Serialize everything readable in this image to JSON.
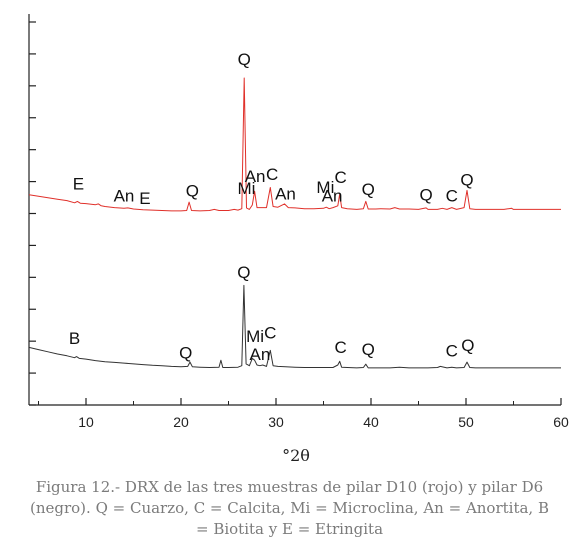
{
  "chart_data": {
    "type": "line",
    "title": "",
    "xlabel": "°2θ",
    "ylabel": "",
    "xlim": [
      4,
      60
    ],
    "x_ticks": [
      10,
      20,
      30,
      40,
      50,
      60
    ],
    "x_tick_labels": [
      "10",
      "20",
      "30",
      "40",
      "50",
      "60"
    ],
    "y_tick_count": 13,
    "grid": false,
    "legend": "none",
    "series": [
      {
        "color": "#e0302a",
        "points": [
          [
            4,
            0.8
          ],
          [
            5,
            0.76
          ],
          [
            6,
            0.72
          ],
          [
            7,
            0.68
          ],
          [
            8,
            0.64
          ],
          [
            8.8,
            0.58
          ],
          [
            9.1,
            0.62
          ],
          [
            9.4,
            0.57
          ],
          [
            10,
            0.56
          ],
          [
            11,
            0.53
          ],
          [
            11.3,
            0.55
          ],
          [
            11.6,
            0.5
          ],
          [
            12,
            0.48
          ],
          [
            13,
            0.45
          ],
          [
            14,
            0.43
          ],
          [
            14.4,
            0.44
          ],
          [
            15,
            0.41
          ],
          [
            16,
            0.39
          ],
          [
            17,
            0.38
          ],
          [
            18,
            0.37
          ],
          [
            19,
            0.36
          ],
          [
            20,
            0.36
          ],
          [
            20.6,
            0.37
          ],
          [
            20.85,
            0.6
          ],
          [
            21.1,
            0.37
          ],
          [
            22,
            0.36
          ],
          [
            23,
            0.37
          ],
          [
            23.5,
            0.4
          ],
          [
            24,
            0.37
          ],
          [
            25,
            0.37
          ],
          [
            25.6,
            0.4
          ],
          [
            26.0,
            0.38
          ],
          [
            26.4,
            0.42
          ],
          [
            26.65,
            4.0
          ],
          [
            26.9,
            0.44
          ],
          [
            27.2,
            0.4
          ],
          [
            27.5,
            0.52
          ],
          [
            27.75,
            0.9
          ],
          [
            28.0,
            0.45
          ],
          [
            28.5,
            0.45
          ],
          [
            29.0,
            0.45
          ],
          [
            29.4,
            1.0
          ],
          [
            29.7,
            0.48
          ],
          [
            30.2,
            0.46
          ],
          [
            30.9,
            0.55
          ],
          [
            31.3,
            0.45
          ],
          [
            32,
            0.44
          ],
          [
            33,
            0.42
          ],
          [
            34,
            0.42
          ],
          [
            35,
            0.43
          ],
          [
            35.3,
            0.46
          ],
          [
            35.6,
            0.42
          ],
          [
            36,
            0.45
          ],
          [
            36.5,
            0.5
          ],
          [
            36.7,
            0.82
          ],
          [
            36.9,
            0.45
          ],
          [
            37.5,
            0.42
          ],
          [
            38.5,
            0.4
          ],
          [
            39.2,
            0.42
          ],
          [
            39.45,
            0.62
          ],
          [
            39.7,
            0.41
          ],
          [
            40.5,
            0.41
          ],
          [
            41,
            0.42
          ],
          [
            42,
            0.41
          ],
          [
            42.5,
            0.45
          ],
          [
            43,
            0.41
          ],
          [
            44,
            0.41
          ],
          [
            45,
            0.4
          ],
          [
            45.8,
            0.44
          ],
          [
            46,
            0.4
          ],
          [
            47,
            0.4
          ],
          [
            47.5,
            0.43
          ],
          [
            48,
            0.4
          ],
          [
            48.5,
            0.45
          ],
          [
            49,
            0.4
          ],
          [
            49.8,
            0.45
          ],
          [
            50.1,
            0.92
          ],
          [
            50.4,
            0.42
          ],
          [
            51,
            0.4
          ],
          [
            52,
            0.4
          ],
          [
            53,
            0.4
          ],
          [
            54,
            0.4
          ],
          [
            54.8,
            0.43
          ],
          [
            55,
            0.4
          ],
          [
            56,
            0.4
          ],
          [
            57,
            0.4
          ],
          [
            58,
            0.4
          ],
          [
            59,
            0.4
          ],
          [
            60,
            0.4
          ]
        ]
      },
      {
        "color": "#333333",
        "points": [
          [
            4,
            0.7
          ],
          [
            5,
            0.64
          ],
          [
            6,
            0.58
          ],
          [
            7,
            0.52
          ],
          [
            8,
            0.47
          ],
          [
            8.8,
            0.42
          ],
          [
            9.0,
            0.45
          ],
          [
            9.3,
            0.4
          ],
          [
            10,
            0.38
          ],
          [
            11,
            0.34
          ],
          [
            12,
            0.31
          ],
          [
            13,
            0.29
          ],
          [
            14,
            0.27
          ],
          [
            15,
            0.25
          ],
          [
            16,
            0.23
          ],
          [
            17,
            0.21
          ],
          [
            18,
            0.2
          ],
          [
            19,
            0.18
          ],
          [
            20,
            0.17
          ],
          [
            20.7,
            0.18
          ],
          [
            20.95,
            0.3
          ],
          [
            21.2,
            0.17
          ],
          [
            22,
            0.16
          ],
          [
            23,
            0.15
          ],
          [
            24.0,
            0.16
          ],
          [
            24.2,
            0.35
          ],
          [
            24.4,
            0.15
          ],
          [
            25,
            0.15
          ],
          [
            26,
            0.16
          ],
          [
            26.4,
            0.2
          ],
          [
            26.62,
            2.4
          ],
          [
            26.85,
            0.25
          ],
          [
            27.2,
            0.2
          ],
          [
            27.5,
            0.4
          ],
          [
            27.75,
            0.35
          ],
          [
            28.0,
            0.22
          ],
          [
            28.3,
            0.2
          ],
          [
            28.6,
            0.22
          ],
          [
            29.0,
            0.18
          ],
          [
            29.4,
            0.62
          ],
          [
            29.7,
            0.2
          ],
          [
            30.2,
            0.18
          ],
          [
            31,
            0.17
          ],
          [
            32,
            0.16
          ],
          [
            33,
            0.15
          ],
          [
            34,
            0.15
          ],
          [
            35,
            0.15
          ],
          [
            36,
            0.15
          ],
          [
            36.5,
            0.22
          ],
          [
            36.7,
            0.32
          ],
          [
            36.9,
            0.16
          ],
          [
            37.5,
            0.15
          ],
          [
            38.5,
            0.14
          ],
          [
            39.2,
            0.15
          ],
          [
            39.45,
            0.24
          ],
          [
            39.7,
            0.14
          ],
          [
            41,
            0.14
          ],
          [
            42,
            0.14
          ],
          [
            43,
            0.16
          ],
          [
            44,
            0.14
          ],
          [
            45,
            0.14
          ],
          [
            46,
            0.14
          ],
          [
            47,
            0.15
          ],
          [
            47.3,
            0.18
          ],
          [
            48,
            0.14
          ],
          [
            48.5,
            0.16
          ],
          [
            49,
            0.14
          ],
          [
            49.8,
            0.15
          ],
          [
            50.1,
            0.3
          ],
          [
            50.4,
            0.15
          ],
          [
            51,
            0.14
          ],
          [
            52,
            0.14
          ],
          [
            53,
            0.14
          ],
          [
            54,
            0.14
          ],
          [
            55,
            0.14
          ],
          [
            56,
            0.14
          ],
          [
            57,
            0.14
          ],
          [
            58,
            0.14
          ],
          [
            59,
            0.14
          ],
          [
            60,
            0.14
          ]
        ]
      }
    ],
    "annotations": [
      {
        "text": "Q",
        "x": 26.65,
        "series": 0,
        "level": 4.35
      },
      {
        "text": "E",
        "x": 9.2,
        "series": 0,
        "level": 0.95
      },
      {
        "text": "An",
        "x": 14.0,
        "series": 0,
        "level": 0.62
      },
      {
        "text": "E",
        "x": 16.2,
        "series": 0,
        "level": 0.55
      },
      {
        "text": "Q",
        "x": 21.2,
        "series": 0,
        "level": 0.75
      },
      {
        "text": "Mi",
        "x": 26.9,
        "series": 0,
        "level": 0.82
      },
      {
        "text": "An",
        "x": 27.8,
        "series": 0,
        "level": 1.15
      },
      {
        "text": "C",
        "x": 29.6,
        "series": 0,
        "level": 1.2
      },
      {
        "text": "An",
        "x": 31.0,
        "series": 0,
        "level": 0.67
      },
      {
        "text": "Mi",
        "x": 35.2,
        "series": 0,
        "level": 0.85
      },
      {
        "text": "An",
        "x": 35.9,
        "series": 0,
        "level": 0.62
      },
      {
        "text": "C",
        "x": 36.8,
        "series": 0,
        "level": 1.12
      },
      {
        "text": "Q",
        "x": 39.7,
        "series": 0,
        "level": 0.8
      },
      {
        "text": "Q",
        "x": 45.8,
        "series": 0,
        "level": 0.65
      },
      {
        "text": "C",
        "x": 48.5,
        "series": 0,
        "level": 0.62
      },
      {
        "text": "Q",
        "x": 50.1,
        "series": 0,
        "level": 1.05
      },
      {
        "text": "Q",
        "x": 26.62,
        "series": 1,
        "level": 2.6
      },
      {
        "text": "B",
        "x": 8.8,
        "series": 1,
        "level": 0.8
      },
      {
        "text": "Q",
        "x": 20.5,
        "series": 1,
        "level": 0.4
      },
      {
        "text": "Mi",
        "x": 27.8,
        "series": 1,
        "level": 0.85
      },
      {
        "text": "C",
        "x": 29.4,
        "series": 1,
        "level": 0.95
      },
      {
        "text": "An",
        "x": 28.3,
        "series": 1,
        "level": 0.35
      },
      {
        "text": "C",
        "x": 36.8,
        "series": 1,
        "level": 0.55
      },
      {
        "text": "Q",
        "x": 39.7,
        "series": 1,
        "level": 0.5
      },
      {
        "text": "C",
        "x": 48.5,
        "series": 1,
        "level": 0.45
      },
      {
        "text": "Q",
        "x": 50.2,
        "series": 1,
        "level": 0.6
      }
    ]
  },
  "caption": {
    "line1": "Figura 12.- DRX de las tres muestras de pilar D10 (rojo) y pilar D6",
    "line2": "(negro). Q = Cuarzo, C = Calcita, Mi = Microclina, An = Anortita, B",
    "line3": "= Biotita y E = Etringita"
  }
}
